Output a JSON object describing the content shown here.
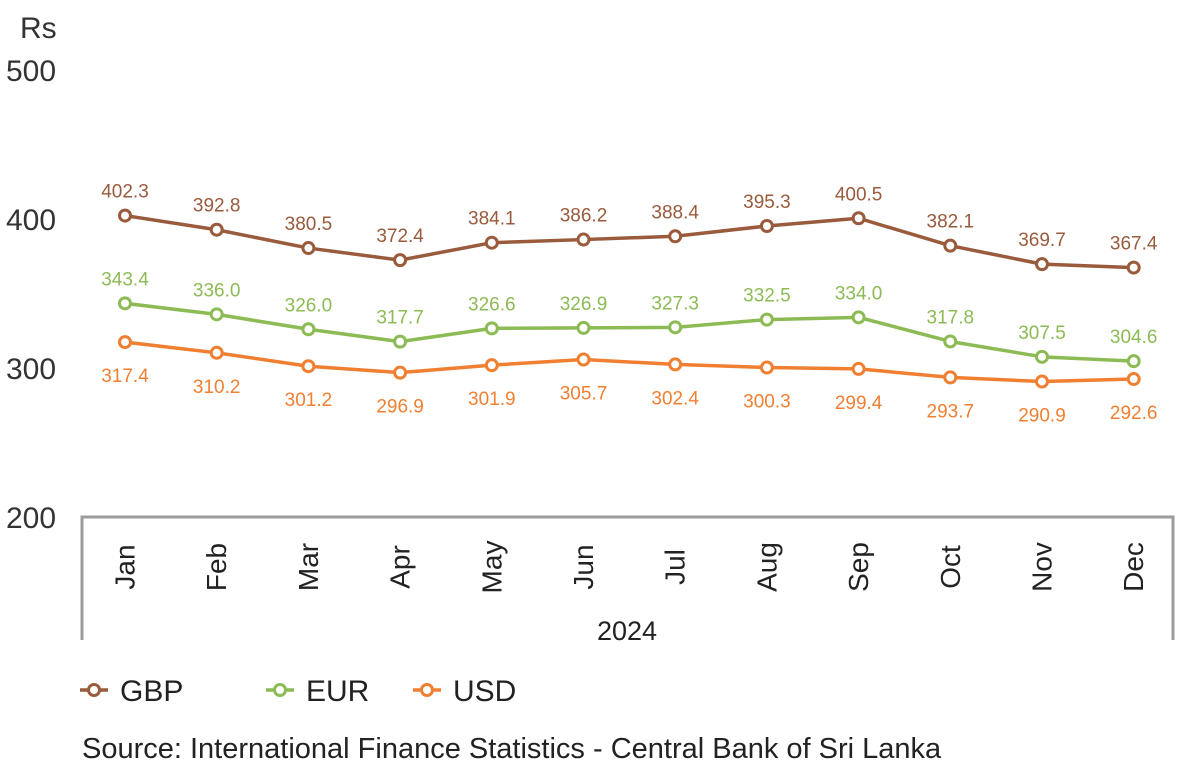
{
  "chart_data": {
    "type": "line",
    "yunit": "Rs",
    "ylim": [
      200,
      500
    ],
    "yticks": [
      "500",
      "400",
      "300",
      "200"
    ],
    "categories": [
      "Jan",
      "Feb",
      "Mar",
      "Apr",
      "May",
      "Jun",
      "Jul",
      "Aug",
      "Sep",
      "Oct",
      "Nov",
      "Dec"
    ],
    "xgroup": "2024",
    "legend_position": "bottom-left",
    "series": [
      {
        "name": "GBP",
        "color": "#9a5a3c",
        "values": [
          402.3,
          392.8,
          380.5,
          372.4,
          384.1,
          386.2,
          388.4,
          395.3,
          400.5,
          382.1,
          369.7,
          367.4
        ]
      },
      {
        "name": "EUR",
        "color": "#8cbb55",
        "values": [
          343.4,
          336.0,
          326.0,
          317.7,
          326.6,
          326.9,
          327.3,
          332.5,
          334.0,
          317.8,
          307.5,
          304.6
        ]
      },
      {
        "name": "USD",
        "color": "#f07f32",
        "values": [
          317.4,
          310.2,
          301.2,
          296.9,
          301.9,
          305.7,
          302.4,
          300.3,
          299.4,
          293.7,
          290.9,
          292.6
        ]
      }
    ],
    "source": "Source: International Finance Statistics - Central Bank of Sri Lanka"
  }
}
